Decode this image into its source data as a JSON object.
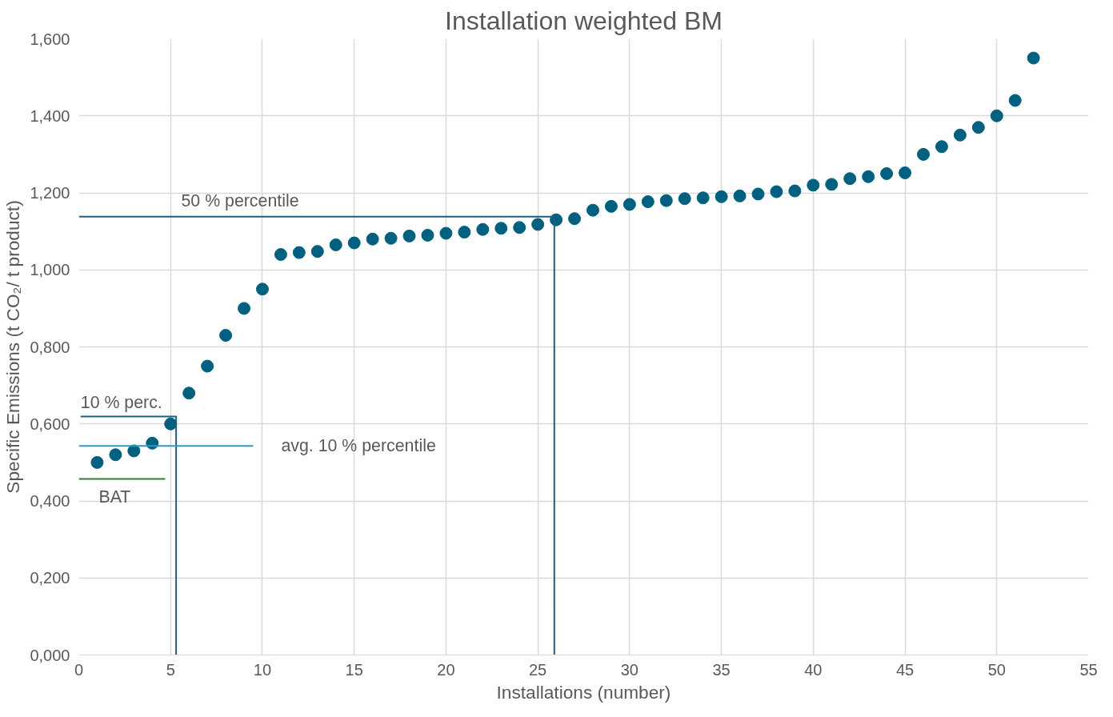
{
  "chart_data": {
    "type": "scatter",
    "title": "Installation weighted BM",
    "xlabel": "Installations (number)",
    "ylabel": "Specific Emissions (t CO₂/ t product)",
    "xlim": [
      0,
      55
    ],
    "xticks": [
      0,
      5,
      10,
      15,
      20,
      25,
      30,
      35,
      40,
      45,
      50,
      55
    ],
    "ylim": [
      0,
      1.6
    ],
    "yticks": [
      {
        "value": 0,
        "label": "0,000"
      },
      {
        "value": 0.2,
        "label": "0,200"
      },
      {
        "value": 0.4,
        "label": "0,400"
      },
      {
        "value": 0.6,
        "label": "0,600"
      },
      {
        "value": 0.8,
        "label": "0,800"
      },
      {
        "value": 1.0,
        "label": "1,000"
      },
      {
        "value": 1.2,
        "label": "1,200"
      },
      {
        "value": 1.4,
        "label": "1,400"
      },
      {
        "value": 1.6,
        "label": "1,600"
      }
    ],
    "grid": true,
    "marker": "circle",
    "series": [
      {
        "color": "#00607f",
        "x": [
          1,
          2,
          3,
          4,
          5,
          6,
          7,
          8,
          9,
          10,
          11,
          12,
          13,
          14,
          15,
          16,
          17,
          18,
          19,
          20,
          21,
          22,
          23,
          24,
          25,
          26,
          27,
          28,
          29,
          30,
          31,
          32,
          33,
          34,
          35,
          36,
          37,
          38,
          39,
          40,
          41,
          42,
          43,
          44,
          45,
          46,
          47,
          48,
          49,
          50,
          51,
          52
        ],
        "values": [
          0.5,
          0.52,
          0.53,
          0.55,
          0.6,
          0.68,
          0.75,
          0.83,
          0.9,
          0.95,
          1.04,
          1.045,
          1.048,
          1.065,
          1.07,
          1.08,
          1.082,
          1.088,
          1.09,
          1.095,
          1.098,
          1.105,
          1.108,
          1.11,
          1.118,
          1.13,
          1.133,
          1.155,
          1.165,
          1.17,
          1.177,
          1.18,
          1.185,
          1.187,
          1.19,
          1.192,
          1.197,
          1.203,
          1.205,
          1.22,
          1.222,
          1.237,
          1.242,
          1.25,
          1.252,
          1.3,
          1.32,
          1.35,
          1.37,
          1.4,
          1.44,
          1.55
        ]
      },
      {
        "type": "line",
        "name": "50 % percentile",
        "color": "#1f5f7f",
        "line_style": "solid",
        "marker": "none",
        "x": [
          0,
          25.9,
          25.9
        ],
        "values": [
          1.138,
          1.138,
          0
        ]
      },
      {
        "type": "line",
        "name": "10 % perc.",
        "color": "#1f5f7f",
        "line_style": "solid",
        "marker": "none",
        "x": [
          0.1,
          5.3,
          5.3
        ],
        "values": [
          0.619,
          0.619,
          0
        ]
      },
      {
        "type": "line",
        "name": "avg. 10 % percentile",
        "color": "#2b9ac8",
        "line_style": "solid",
        "marker": "none",
        "x": [
          0,
          9.5
        ],
        "values": [
          0.543,
          0.543
        ]
      },
      {
        "type": "line",
        "name": "BAT",
        "color": "#2e7d32",
        "line_style": "solid",
        "marker": "none",
        "x": [
          0,
          4.7
        ],
        "values": [
          0.457,
          0.457
        ]
      }
    ]
  }
}
